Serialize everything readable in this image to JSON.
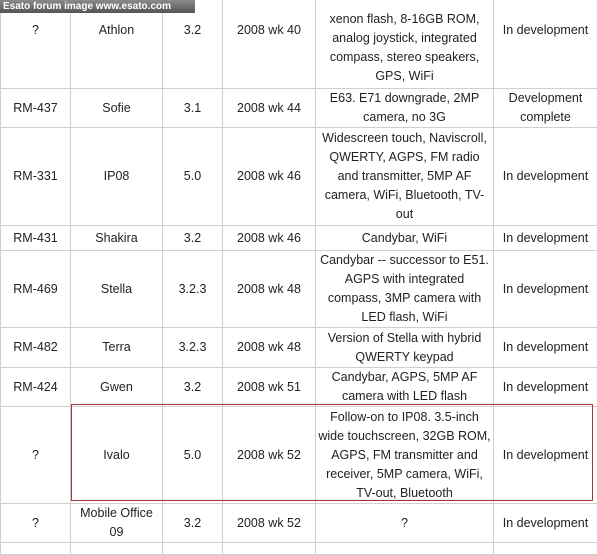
{
  "banner": "Esato forum image www.esato.com",
  "table": {
    "rows": [
      [
        "?",
        "Athlon",
        "3.2",
        "2008 wk 40",
        "xenon flash, 8-16GB ROM, analog joystick, integrated compass, stereo speakers, GPS, WiFi",
        "In development"
      ],
      [
        "RM-437",
        "Sofie",
        "3.1",
        "2008 wk 44",
        "E63. E71 downgrade, 2MP camera, no 3G",
        "Development complete"
      ],
      [
        "RM-331",
        "IP08",
        "5.0",
        "2008 wk 46",
        "Widescreen touch, Naviscroll, QWERTY, AGPS, FM radio and transmitter, 5MP AF camera, WiFi, Bluetooth, TV-out",
        "In development"
      ],
      [
        "RM-431",
        "Shakira",
        "3.2",
        "2008 wk 46",
        "Candybar, WiFi",
        "In development"
      ],
      [
        "RM-469",
        "Stella",
        "3.2.3",
        "2008 wk 48",
        "Candybar -- successor to E51. AGPS with integrated compass, 3MP camera with LED flash, WiFi",
        "In development"
      ],
      [
        "RM-482",
        "Terra",
        "3.2.3",
        "2008 wk 48",
        "Version of Stella with hybrid QWERTY keypad",
        "In development"
      ],
      [
        "RM-424",
        "Gwen",
        "3.2",
        "2008 wk 51",
        "Candybar, AGPS, 5MP AF camera with LED flash",
        "In development"
      ],
      [
        "?",
        "Ivalo",
        "5.0",
        "2008 wk 52",
        "Follow-on to IP08. 3.5-inch wide touchscreen, 32GB ROM, AGPS, FM transmitter and receiver, 5MP camera, WiFi, TV-out, Bluetooth",
        "In development"
      ],
      [
        "?",
        "Mobile Office 09",
        "3.2",
        "2008 wk 52",
        "?",
        "In development"
      ]
    ]
  }
}
